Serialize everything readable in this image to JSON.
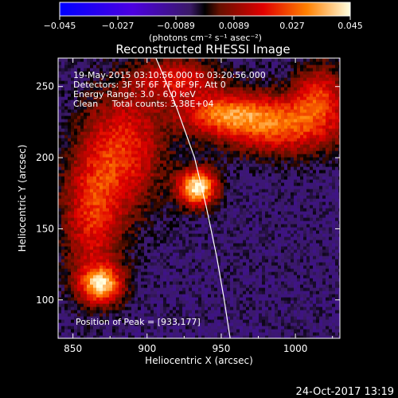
{
  "chart_data": {
    "type": "heatmap",
    "title": "Reconstructed RHESSI Image",
    "xlabel": "Heliocentric X (arcsec)",
    "ylabel": "Heliocentric Y (arcsec)",
    "xlim": [
      840,
      1030
    ],
    "ylim": [
      73,
      270
    ],
    "xticks": [
      "850",
      "900",
      "950",
      "1000"
    ],
    "yticks": [
      "100",
      "150",
      "200",
      "250"
    ],
    "colorbar": {
      "range": [
        -0.045,
        0.045
      ],
      "ticks": [
        "-0.045",
        "-0.027",
        "-0.0089",
        "0.0089",
        "0.027",
        "0.045"
      ],
      "units": "(photons cm⁻² s⁻¹ asec⁻²)"
    },
    "annotations": [
      "19-May-2015 03:10:56.000 to 03:20:56.000",
      "Detectors: 3F 5F 6F 7F 8F 9F, Att 0",
      "Energy Range: 3.0 - 6.0 keV",
      "Clean     Total counts: 3.38E+04"
    ],
    "peak_label": "Position of Peak = [933,177]",
    "peak": [
      933,
      177
    ],
    "limb_curve": [
      [
        906,
        270
      ],
      [
        920,
        235
      ],
      [
        932,
        200
      ],
      [
        940,
        165
      ],
      [
        947,
        130
      ],
      [
        952,
        100
      ],
      [
        956,
        73
      ]
    ],
    "sources": [
      {
        "x": 933,
        "y": 178,
        "sx": 9,
        "sy": 9,
        "amp": 1.0
      },
      {
        "x": 868,
        "y": 110,
        "sx": 10,
        "sy": 9,
        "amp": 0.82
      },
      {
        "x": 990,
        "y": 222,
        "sx": 30,
        "sy": 14,
        "amp": 0.62
      },
      {
        "x": 950,
        "y": 230,
        "sx": 22,
        "sy": 10,
        "amp": 0.55
      },
      {
        "x": 885,
        "y": 205,
        "sx": 18,
        "sy": 30,
        "amp": 0.5
      },
      {
        "x": 862,
        "y": 160,
        "sx": 14,
        "sy": 35,
        "amp": 0.5
      },
      {
        "x": 920,
        "y": 255,
        "sx": 20,
        "sy": 10,
        "amp": 0.45
      },
      {
        "x": 1015,
        "y": 245,
        "sx": 12,
        "sy": 14,
        "amp": 0.45
      }
    ]
  },
  "footer": {
    "date": "24-Oct-2017 13:19"
  }
}
